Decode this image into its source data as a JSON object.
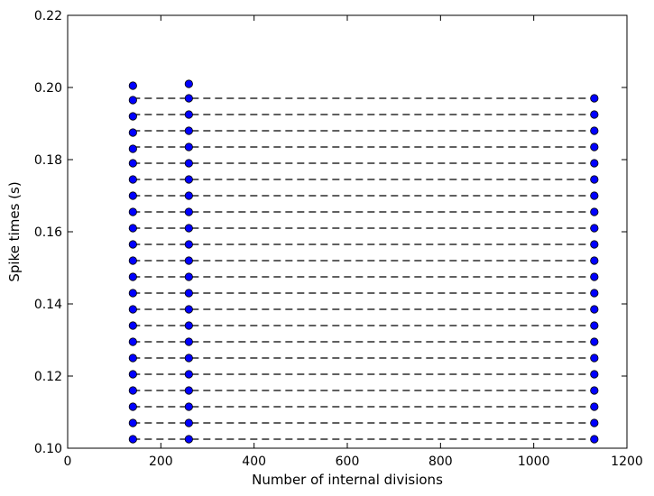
{
  "chart_data": {
    "type": "scatter",
    "title": "",
    "xlabel": "Number of internal divisions",
    "ylabel": "Spike times (s)",
    "xlim": [
      0,
      1200
    ],
    "ylim": [
      0.1,
      0.22
    ],
    "xticks": [
      0,
      200,
      400,
      600,
      800,
      1000,
      1200
    ],
    "xtick_labels": [
      "0",
      "200",
      "400",
      "600",
      "800",
      "1000",
      "1200"
    ],
    "yticks": [
      0.1,
      0.12,
      0.14,
      0.16,
      0.18,
      0.2,
      0.22
    ],
    "ytick_labels": [
      "0.10",
      "0.12",
      "0.14",
      "0.16",
      "0.18",
      "0.20",
      "0.22"
    ],
    "grid": false,
    "legend": "none",
    "marker_color": "#0000ff",
    "marker_edge_color": "#000000",
    "reference_line_color": "#000000",
    "reference_line_style": "dashed",
    "reference_line_x_range": [
      140,
      1130
    ],
    "series": [
      {
        "x": 140,
        "values": [
          0.1025,
          0.107,
          0.1115,
          0.116,
          0.1205,
          0.125,
          0.1295,
          0.134,
          0.1385,
          0.143,
          0.1475,
          0.152,
          0.1565,
          0.161,
          0.1655,
          0.17,
          0.1745,
          0.179,
          0.183,
          0.1875,
          0.192,
          0.1965,
          0.2005
        ]
      },
      {
        "x": 260,
        "values": [
          0.1025,
          0.107,
          0.1115,
          0.116,
          0.1205,
          0.125,
          0.1295,
          0.134,
          0.1385,
          0.143,
          0.1475,
          0.152,
          0.1565,
          0.161,
          0.1655,
          0.17,
          0.1745,
          0.179,
          0.1835,
          0.188,
          0.1925,
          0.197,
          0.201
        ]
      },
      {
        "x": 1130,
        "values": [
          0.1025,
          0.107,
          0.1115,
          0.116,
          0.1205,
          0.125,
          0.1295,
          0.134,
          0.1385,
          0.143,
          0.1475,
          0.152,
          0.1565,
          0.161,
          0.1655,
          0.17,
          0.1745,
          0.179,
          0.1835,
          0.188,
          0.1925,
          0.197
        ]
      }
    ],
    "reference_lines_y": [
      0.1025,
      0.107,
      0.1115,
      0.116,
      0.1205,
      0.125,
      0.1295,
      0.134,
      0.1385,
      0.143,
      0.1475,
      0.152,
      0.1565,
      0.161,
      0.1655,
      0.17,
      0.1745,
      0.179,
      0.1835,
      0.188,
      0.1925,
      0.197
    ]
  }
}
